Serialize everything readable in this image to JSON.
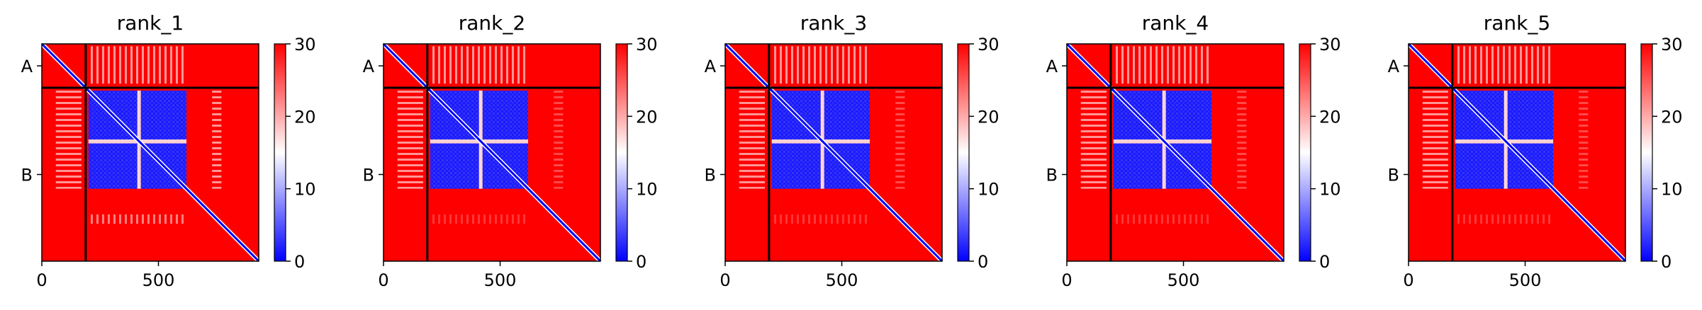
{
  "chart_data": {
    "type": "heatmap",
    "description_free": true,
    "panels": [
      {
        "title": "rank_1"
      },
      {
        "title": "rank_2"
      },
      {
        "title": "rank_3"
      },
      {
        "title": "rank_4"
      },
      {
        "title": "rank_5"
      }
    ],
    "matrix_size": 930,
    "chain_labels": [
      {
        "label": "A",
        "start": 0,
        "end": 188
      },
      {
        "label": "B",
        "start": 188,
        "end": 930
      }
    ],
    "chain_boundary": 188,
    "x_ticks": [
      0,
      500
    ],
    "x_tick_labels": [
      "0",
      "500"
    ],
    "xlim": [
      0,
      930
    ],
    "colorbar": {
      "min": 0,
      "max": 30,
      "ticks": [
        0,
        10,
        20,
        30
      ],
      "tick_labels": [
        "0",
        "10",
        "20",
        "30"
      ],
      "colors": {
        "low": "#0000ff",
        "mid": "#ffffff",
        "high": "#ff0000"
      }
    },
    "domain_blocks": {
      "region": [
        200,
        620
      ],
      "sub_boundaries": [
        410
      ]
    },
    "colors": {
      "high_error": "#ff0000",
      "low_error": "#0000ff",
      "divider": "#000000"
    }
  }
}
